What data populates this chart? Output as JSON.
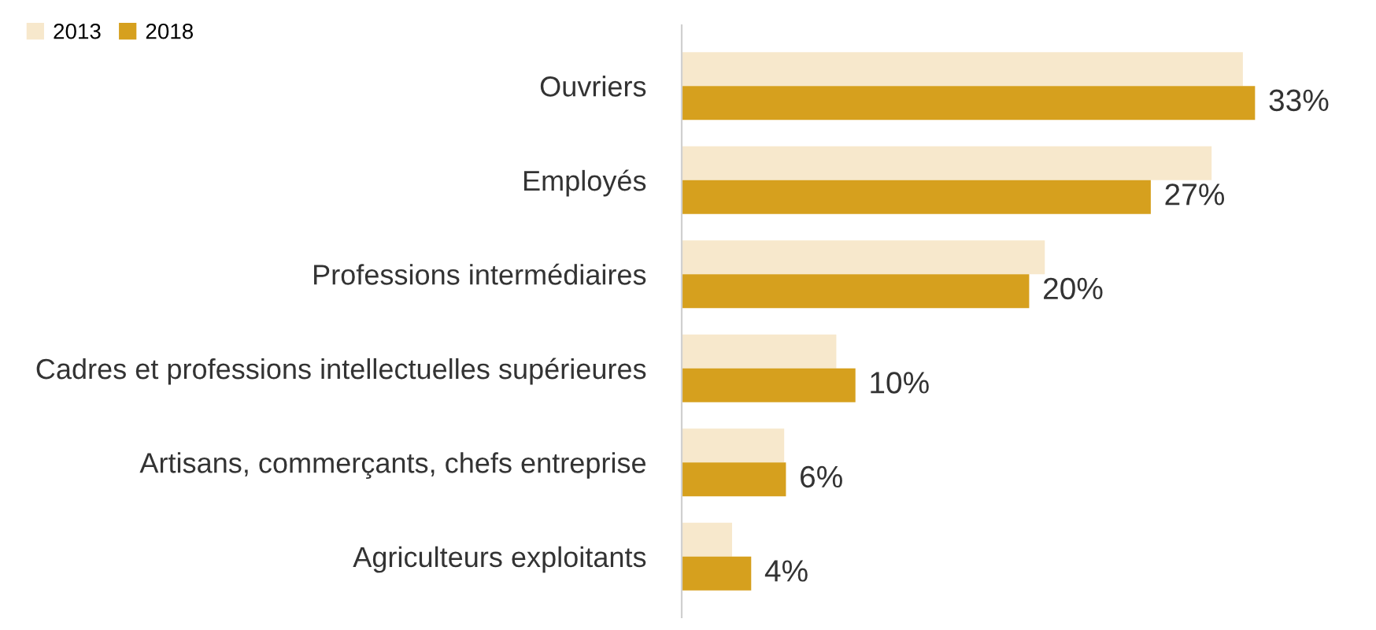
{
  "chart_data": {
    "type": "bar",
    "orientation": "horizontal",
    "categories": [
      "Ouvriers",
      "Employés",
      "Professions intermédiaires",
      "Cadres et professions intellectuelles supérieures",
      "Artisans, commerçants, chefs entreprise",
      "Agriculteurs exploitants"
    ],
    "series": [
      {
        "name": "2013",
        "color": "#f7e8cc",
        "values": [
          32.3,
          30.5,
          20.9,
          8.9,
          5.9,
          2.9
        ],
        "value_labels": [
          null,
          null,
          null,
          null,
          null,
          null
        ]
      },
      {
        "name": "2018",
        "color": "#d6a01e",
        "values": [
          33,
          27,
          20,
          10,
          6,
          4
        ],
        "value_labels": [
          "33%",
          "27%",
          "20%",
          "10%",
          "6%",
          "4%"
        ]
      }
    ],
    "legend": "top left",
    "grid": false
  }
}
